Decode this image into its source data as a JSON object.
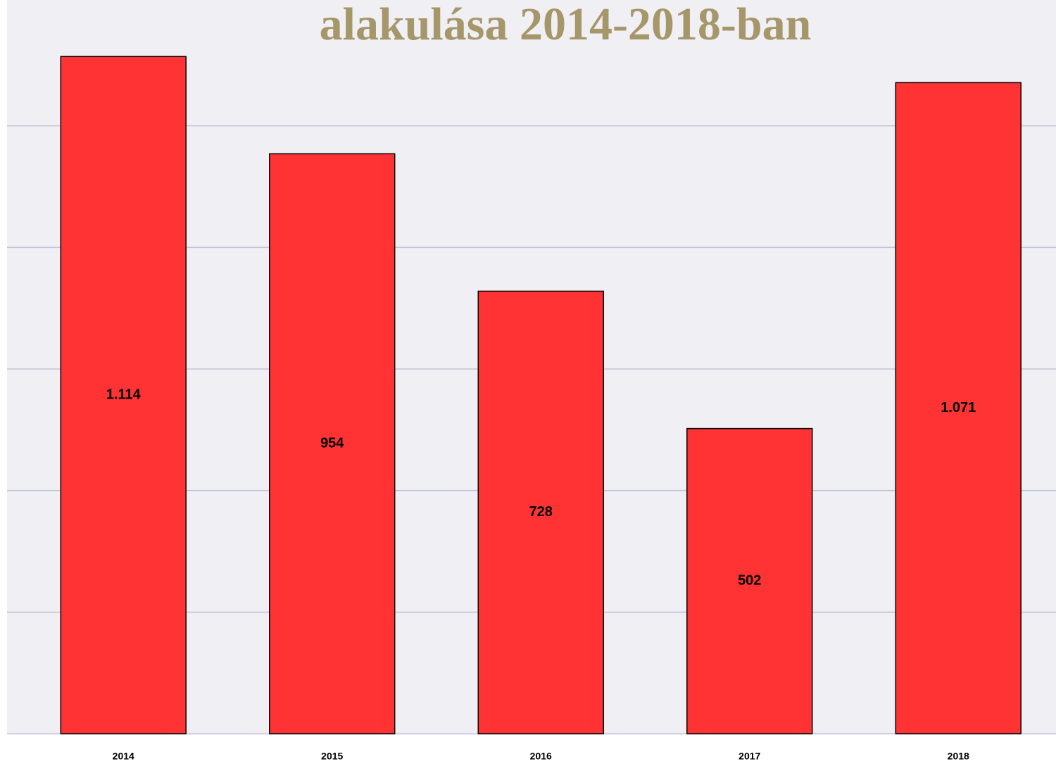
{
  "chart_data": {
    "type": "bar",
    "title": "alakulása 2014-2018-ban",
    "categories": [
      "2014",
      "2015",
      "2016",
      "2017",
      "2018"
    ],
    "values": [
      1114,
      954,
      728,
      502,
      1071
    ],
    "value_labels": [
      "1.114",
      "954",
      "728",
      "502",
      "1.071"
    ],
    "color": "#ff3333",
    "ylim": [
      0,
      1200
    ],
    "yticks": [
      0,
      200,
      400,
      600,
      800,
      1000
    ],
    "grid": true
  }
}
